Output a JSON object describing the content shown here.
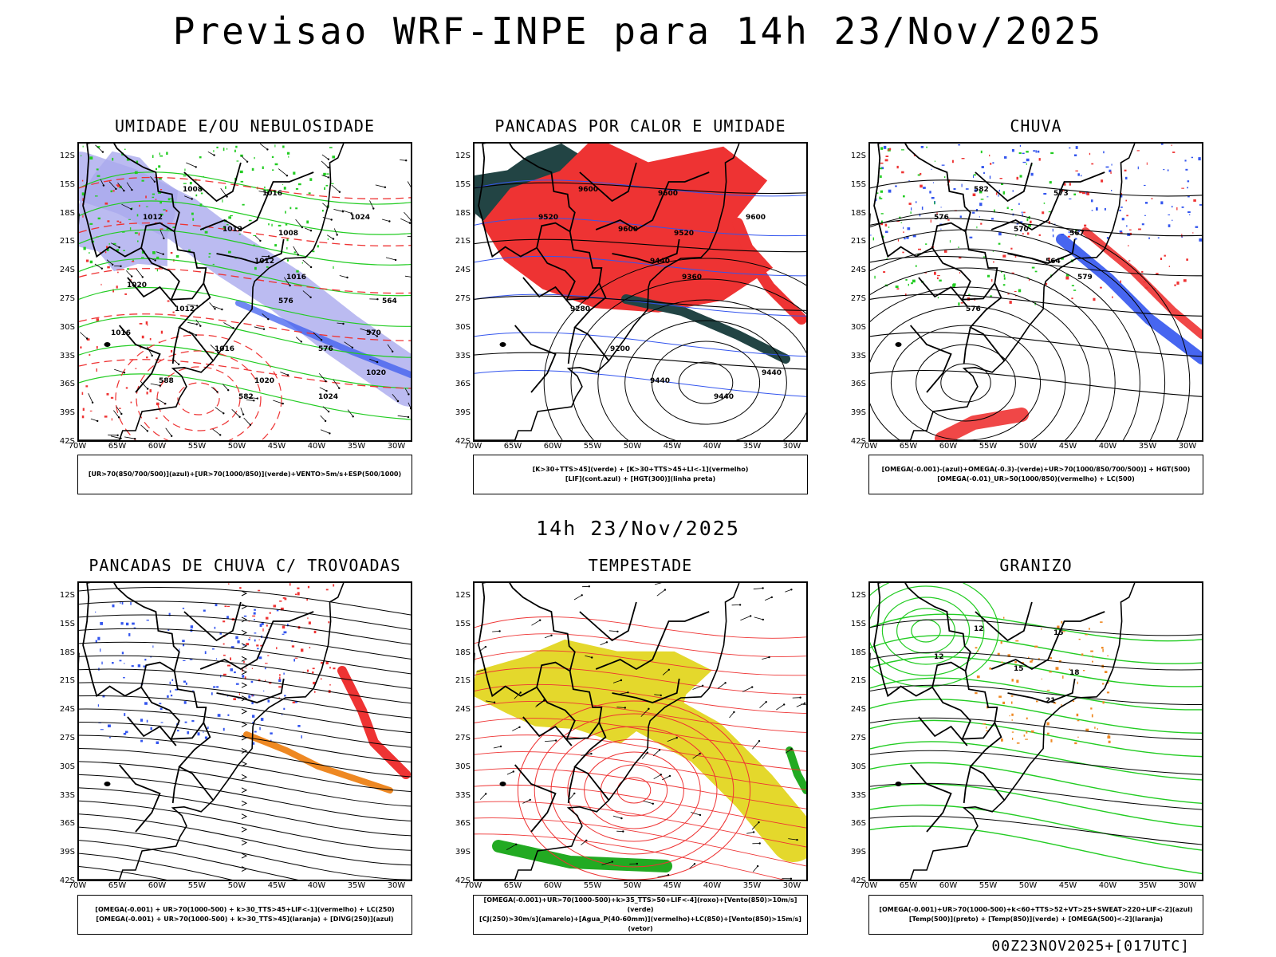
{
  "header": {
    "title": "Previsao WRF-INPE  para 14h 23/Nov/2025",
    "middle_title": "14h 23/Nov/2025",
    "footer": "00Z23NOV2025+[017UTC]"
  },
  "axes": {
    "lat_labels": [
      "12S",
      "15S",
      "18S",
      "21S",
      "24S",
      "27S",
      "30S",
      "33S",
      "36S",
      "39S",
      "42S"
    ],
    "lon_labels": [
      "70W",
      "65W",
      "60W",
      "55W",
      "50W",
      "45W",
      "40W",
      "35W",
      "30W"
    ]
  },
  "panels": [
    {
      "id": "umidade",
      "title": "UMIDADE E/OU NEBULOSIDADE",
      "legend": [
        "[UR>70(850/700/500)](azul)+[UR>70(1000/850)](verde)+VENTO>5m/s+ESP(500/1000)"
      ],
      "contour_labels": [
        "1008",
        "1012",
        "1016",
        "1012",
        "1008",
        "1012",
        "1016",
        "1012",
        "1016",
        "1020",
        "1024",
        "1020",
        "1024",
        "1020",
        "1016",
        "576",
        "576",
        "570",
        "582",
        "588",
        "564"
      ]
    },
    {
      "id": "pancadas_calor",
      "title": "PANCADAS POR CALOR E UMIDADE",
      "legend": [
        "[K>30+TTS>45](verde) + [K>30+TTS>45+LI<-1](vermelho)",
        "[LIF](cont.azul) + [HGT(300)](linha preta)"
      ],
      "contour_labels": [
        "9600",
        "9520",
        "9600",
        "9600",
        "9520",
        "9440",
        "9360",
        "9280",
        "9200",
        "9440",
        "9440",
        "9440",
        "9600"
      ]
    },
    {
      "id": "chuva",
      "title": "CHUVA",
      "legend": [
        "[OMEGA(-0.001)-(azul)+OMEGA(-0.3)-(verde)+UR>70(1000/850/700/500)] + HGT(500)",
        "[OMEGA(-0.01)_UR>50(1000/850)(vermelho) + LC(500)"
      ],
      "contour_labels": [
        "582",
        "576",
        "573",
        "570",
        "567",
        "564",
        "579",
        "576"
      ]
    },
    {
      "id": "trovoadas",
      "title": "PANCADAS DE CHUVA C/ TROVOADAS",
      "legend": [
        "[OMEGA(-0.001) + UR>70(1000-500) + k>30_TTS>45+LIF<-1](vermelho) + LC(250)",
        "[OMEGA(-0.001) + UR>70(1000-500) + k>30_TTS>45](laranja) + [DIVG(250)](azul)"
      ],
      "contour_labels": []
    },
    {
      "id": "tempestade",
      "title": "TEMPESTADE",
      "legend": [
        "[OMEGA(-0.001)+UR>70(1000-500)+k>35_TTS>50+LIF<-4](roxo)+[Vento(850)>10m/s](verde)",
        "[CJ(250)>30m/s](amarelo)+[Agua_P(40-60mm)](vermelho)+LC(850)+[Vento(850)>15m/s](vetor)"
      ],
      "contour_labels": []
    },
    {
      "id": "granizo",
      "title": "GRANIZO",
      "legend": [
        "[OMEGA(-0.001)+UR>70(1000-500)+k<60+TTS>52+VT>25+SWEAT>220+LIF<-2](azul)",
        "[Temp(500)](preto) + [Temp(850)](verde) + [OMEGA(500)<-2](laranja)"
      ],
      "contour_labels": [
        "12",
        "12",
        "15",
        "15",
        "18",
        "21"
      ]
    }
  ],
  "colors": {
    "blue": "#3355ee",
    "lavender": "#aaaaee",
    "green": "#22cc22",
    "red": "#ee3333",
    "dark_teal": "#224444",
    "orange": "#ee8822",
    "yellow": "#e4d82c",
    "black": "#000000"
  }
}
